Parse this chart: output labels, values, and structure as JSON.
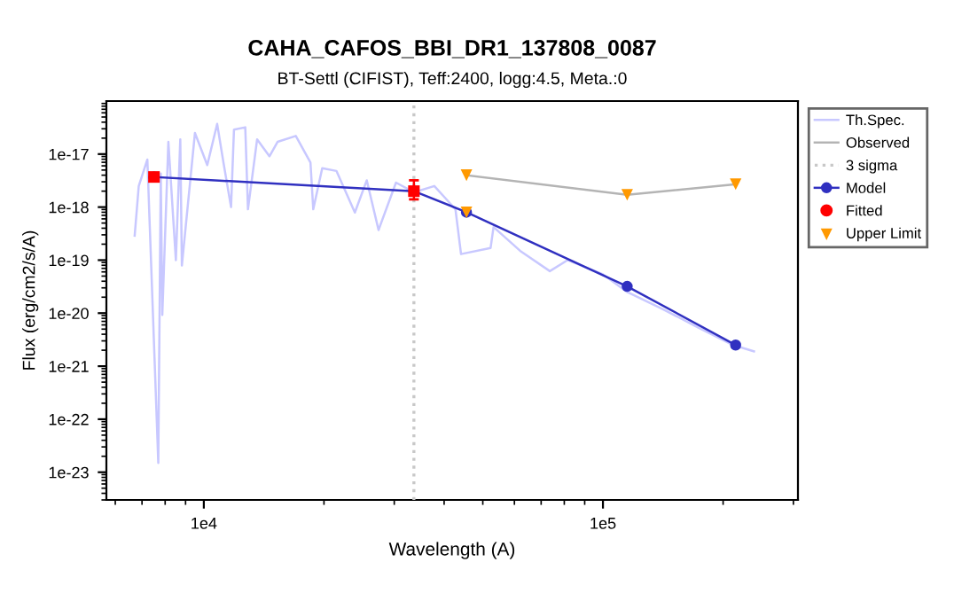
{
  "chart_data": {
    "type": "line",
    "title": "CAHA_CAFOS_BBI_DR1_137808_0087",
    "subtitle": "BT-Settl (CIFIST), Teff:2400, logg:4.5, Meta.:0",
    "xlabel": "Wavelength (A)",
    "ylabel": "Flux (erg/cm2/s/A)",
    "log": "xy",
    "xlim": [
      5700,
      308000
    ],
    "ylim": [
      3e-24,
      1e-16
    ],
    "xticks": [
      {
        "value": 10000,
        "label": "1e4"
      },
      {
        "value": 100000,
        "label": "1e5"
      }
    ],
    "yticks": [
      {
        "value": 1e-23,
        "label": "1e-23"
      },
      {
        "value": 1e-22,
        "label": "1e-22"
      },
      {
        "value": 1e-21,
        "label": "1e-21"
      },
      {
        "value": 1e-20,
        "label": "1e-20"
      },
      {
        "value": 1e-19,
        "label": "1e-19"
      },
      {
        "value": 1e-18,
        "label": "1e-18"
      },
      {
        "value": 1e-17,
        "label": "1e-17"
      }
    ],
    "grid": false,
    "legend": "right",
    "series": [
      {
        "name": "Th.Spec.",
        "color": "#c8c8ff",
        "marker": "none",
        "x": [
          6710,
          6870,
          7220,
          7690,
          7800,
          7870,
          8150,
          8510,
          8730,
          8810,
          9500,
          10200,
          10800,
          11200,
          11700,
          11900,
          12700,
          12900,
          13600,
          14600,
          15300,
          17000,
          18500,
          18800,
          19800,
          21500,
          23900,
          25600,
          27400,
          30300,
          33600,
          37800,
          42700,
          44100,
          52300,
          53200,
          62000,
          73600,
          81500,
          100000,
          115000,
          141000,
          173000,
          212000,
          239000
        ],
        "values": [
          2.9e-19,
          2.5e-18,
          7.9e-18,
          1.5e-23,
          4.3e-18,
          9.3e-21,
          1.7e-17,
          1e-19,
          1.9e-17,
          7.9e-20,
          2.5e-17,
          6.2e-18,
          3.7e-17,
          6.9e-18,
          1e-18,
          2.9e-17,
          3.2e-17,
          9.1e-19,
          1.9e-17,
          9.1e-18,
          1.7e-17,
          2.2e-17,
          6.9e-18,
          9.1e-19,
          5.4e-18,
          4.8e-18,
          7.9e-19,
          3.2e-18,
          3.7e-19,
          2.9e-18,
          1.9e-18,
          2.5e-18,
          9.1e-19,
          1.3e-19,
          1.7e-19,
          4.2e-19,
          1.5e-19,
          6.2e-20,
          1e-19,
          5.4e-20,
          2.5e-20,
          1.2e-20,
          5.4e-21,
          2.5e-21,
          1.9e-21
        ]
      },
      {
        "name": "Observed",
        "color": "#b4b4b4",
        "marker": "none",
        "x": [
          45500,
          115000,
          215000
        ],
        "values": [
          4e-18,
          1.7e-18,
          2.7e-18
        ]
      },
      {
        "name": "3 sigma",
        "color": "#c8c8c8",
        "marker": "none",
        "line_style": "dotted",
        "x": [
          33600,
          33600
        ],
        "values": [
          3e-24,
          1e-16
        ]
      },
      {
        "name": "Model",
        "color": "#3030c0",
        "marker": "circle",
        "x": [
          7500,
          33600,
          45500,
          115000,
          215000
        ],
        "values": [
          3.7e-18,
          2e-18,
          8e-19,
          3.2e-20,
          2.5e-21
        ]
      },
      {
        "name": "Fitted",
        "type": "scatter",
        "color": "#ff0000",
        "marker": "square",
        "x": [
          7500,
          33600
        ],
        "values": [
          3.7e-18,
          2e-18
        ],
        "errors": [
          null,
          [
            1.4e-18,
            3.2e-18
          ]
        ]
      },
      {
        "name": "Upper Limit",
        "type": "scatter",
        "color": "#ff9900",
        "marker": "triangle",
        "x": [
          45500,
          45500,
          115000,
          215000
        ],
        "values": [
          4e-18,
          8e-19,
          1.7e-18,
          2.7e-18
        ]
      }
    ]
  }
}
